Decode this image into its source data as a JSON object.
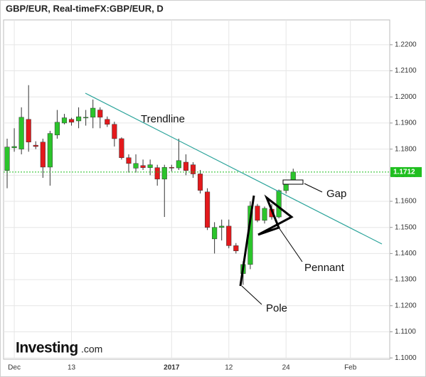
{
  "chart_data": {
    "type": "candlestick",
    "title": "GBP/EUR, Real-timeFX:GBP/EUR, D",
    "logo": "Investing",
    "logo_suffix": ".com",
    "categories": [
      null,
      "Dec",
      null,
      null,
      null,
      null,
      null,
      null,
      null,
      "13",
      null,
      null,
      null,
      null,
      null,
      null,
      null,
      null,
      null,
      null,
      null,
      null,
      null,
      "2017",
      null,
      null,
      null,
      null,
      null,
      null,
      null,
      "12",
      null,
      null,
      null,
      null,
      null,
      null,
      null,
      "24",
      null,
      null,
      null,
      null,
      null,
      null,
      null,
      null,
      "Feb",
      null,
      null,
      null,
      null,
      null
    ],
    "open": [
      1.1718,
      1.1805,
      1.18,
      1.1914,
      1.1815,
      1.1827,
      1.1731,
      1.1854,
      1.19,
      1.1914,
      1.1908,
      1.192,
      1.1922,
      1.195,
      1.1914,
      1.1895,
      1.184,
      1.1767,
      1.1727,
      1.1737,
      1.1729,
      1.1729,
      1.1685,
      1.173,
      1.1728,
      1.175,
      1.174,
      1.1705,
      1.1636,
      1.1456,
      1.15,
      1.1505,
      1.143,
      1.1323,
      1.1358,
      1.1582,
      1.1527,
      1.157,
      1.154,
      1.1641,
      1.1675,
      null,
      null,
      null,
      null,
      null,
      null,
      null,
      null,
      null,
      null,
      null,
      null,
      null
    ],
    "high": [
      1.184,
      1.188,
      1.196,
      1.2045,
      1.183,
      1.184,
      1.187,
      1.195,
      1.1935,
      1.192,
      1.196,
      1.195,
      1.199,
      1.196,
      1.1925,
      1.1905,
      1.1845,
      1.178,
      1.178,
      1.176,
      1.176,
      1.174,
      1.174,
      1.174,
      1.184,
      1.178,
      1.175,
      1.172,
      1.165,
      1.152,
      1.153,
      1.153,
      1.144,
      1.137,
      1.16,
      1.159,
      1.158,
      1.159,
      1.1645,
      1.168,
      1.1725,
      null,
      null,
      null,
      null,
      null,
      null,
      null,
      null,
      null,
      null,
      null,
      null,
      null
    ],
    "low": [
      1.165,
      1.179,
      1.178,
      1.179,
      1.18,
      1.169,
      1.166,
      1.184,
      1.1895,
      1.189,
      1.188,
      1.189,
      1.188,
      1.188,
      1.1885,
      1.181,
      1.176,
      1.171,
      1.171,
      1.172,
      1.17,
      1.166,
      1.154,
      1.1715,
      1.172,
      1.17,
      1.169,
      1.163,
      1.149,
      1.14,
      1.145,
      1.142,
      1.14,
      1.128,
      1.134,
      1.152,
      1.1515,
      1.153,
      1.1535,
      1.163,
      1.167,
      null,
      null,
      null,
      null,
      null,
      null,
      null,
      null,
      null,
      null,
      null,
      null,
      null
    ],
    "close": [
      1.1808,
      1.181,
      1.1922,
      1.1827,
      1.181,
      1.1731,
      1.186,
      1.1903,
      1.192,
      1.1903,
      1.1924,
      1.1922,
      1.1957,
      1.1922,
      1.1895,
      1.184,
      1.1767,
      1.1745,
      1.1745,
      1.1729,
      1.174,
      1.1685,
      1.173,
      1.1728,
      1.1756,
      1.1718,
      1.1705,
      1.1642,
      1.15,
      1.15,
      1.1505,
      1.143,
      1.141,
      1.1358,
      1.1582,
      1.1527,
      1.1573,
      1.154,
      1.1641,
      1.167,
      1.1712,
      null,
      null,
      null,
      null,
      null,
      null,
      null,
      null,
      null,
      null,
      null,
      null,
      null
    ],
    "up_color": "#2bc42b",
    "down_color": "#e3191c",
    "last_price": 1.1712,
    "last_price_color": "#1fbf1f",
    "ylim": [
      1.0995,
      1.2295
    ],
    "yticks": [
      {
        "value": 1.1,
        "label": "1.1000"
      },
      {
        "value": 1.11,
        "label": "1.1100"
      },
      {
        "value": 1.12,
        "label": "1.1200"
      },
      {
        "value": 1.13,
        "label": "1.1300"
      },
      {
        "value": 1.14,
        "label": "1.1400"
      },
      {
        "value": 1.15,
        "label": "1.1500"
      },
      {
        "value": 1.16,
        "label": "1.1600"
      },
      {
        "value": 1.17,
        "label": "1.1700"
      },
      {
        "value": 1.18,
        "label": "1.1800"
      },
      {
        "value": 1.19,
        "label": "1.1900"
      },
      {
        "value": 1.2,
        "label": "1.2000"
      },
      {
        "value": 1.21,
        "label": "1.2100"
      },
      {
        "value": 1.22,
        "label": "1.2200"
      }
    ],
    "grid": true,
    "annotations": [
      "Trendline",
      "Pennant",
      "Pole",
      "Gap"
    ]
  }
}
